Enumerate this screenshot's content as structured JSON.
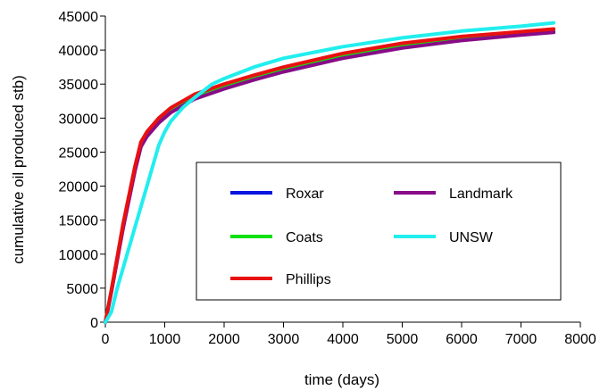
{
  "chart_data": {
    "type": "line",
    "xlabel": "time (days)",
    "ylabel": "cumulative oil produced stb)",
    "xlim": [
      0,
      8000
    ],
    "ylim": [
      0,
      45000
    ],
    "xticks": [
      0,
      1000,
      2000,
      3000,
      4000,
      5000,
      6000,
      7000,
      8000
    ],
    "yticks": [
      0,
      5000,
      10000,
      15000,
      20000,
      25000,
      30000,
      35000,
      40000,
      45000
    ],
    "grid": false,
    "legend_position": "lower-right",
    "series": [
      {
        "name": "Roxar",
        "color": "#0a14e0",
        "x": [
          0,
          100,
          300,
          500,
          600,
          700,
          900,
          1100,
          1300,
          1500,
          2000,
          2500,
          3000,
          4000,
          5000,
          6000,
          7000,
          7550
        ],
        "y": [
          0,
          4500,
          14000,
          22500,
          26000,
          27500,
          29500,
          31000,
          32000,
          33000,
          34500,
          35800,
          37000,
          39000,
          40500,
          41500,
          42300,
          42700
        ]
      },
      {
        "name": "Coats",
        "color": "#11e011",
        "x": [
          0,
          100,
          300,
          500,
          600,
          700,
          900,
          1100,
          1300,
          1500,
          2000,
          2500,
          3000,
          4000,
          5000,
          6000,
          7000,
          7550
        ],
        "y": [
          0,
          4600,
          14200,
          22700,
          26200,
          27800,
          29800,
          31200,
          32200,
          33200,
          34800,
          36100,
          37300,
          39300,
          40800,
          41800,
          42600,
          43000
        ]
      },
      {
        "name": "Phillips",
        "color": "#e81010",
        "x": [
          0,
          100,
          300,
          500,
          600,
          700,
          900,
          1100,
          1300,
          1500,
          2000,
          2500,
          3000,
          4000,
          5000,
          6000,
          7000,
          7550
        ],
        "y": [
          0,
          4700,
          14500,
          23000,
          26500,
          28000,
          30000,
          31500,
          32500,
          33500,
          35000,
          36300,
          37500,
          39500,
          41000,
          42000,
          42700,
          43100
        ]
      },
      {
        "name": "Landmark",
        "color": "#880b88",
        "x": [
          0,
          100,
          300,
          500,
          600,
          700,
          900,
          1100,
          1300,
          1500,
          2000,
          2500,
          3000,
          4000,
          5000,
          6000,
          7000,
          7550
        ],
        "y": [
          0,
          4400,
          13800,
          22300,
          25800,
          27300,
          29300,
          30800,
          31800,
          32800,
          34300,
          35600,
          36800,
          38800,
          40300,
          41400,
          42200,
          42600
        ]
      },
      {
        "name": "UNSW",
        "color": "#22eeee",
        "x": [
          0,
          100,
          200,
          400,
          600,
          800,
          900,
          1000,
          1100,
          1200,
          1300,
          1500,
          1800,
          2000,
          2500,
          3000,
          4000,
          5000,
          6000,
          7000,
          7550
        ],
        "y": [
          0,
          1500,
          5000,
          11000,
          17000,
          23000,
          26000,
          28000,
          29500,
          30500,
          31500,
          33000,
          35000,
          35800,
          37500,
          38800,
          40500,
          41800,
          42800,
          43500,
          44000
        ]
      }
    ]
  }
}
